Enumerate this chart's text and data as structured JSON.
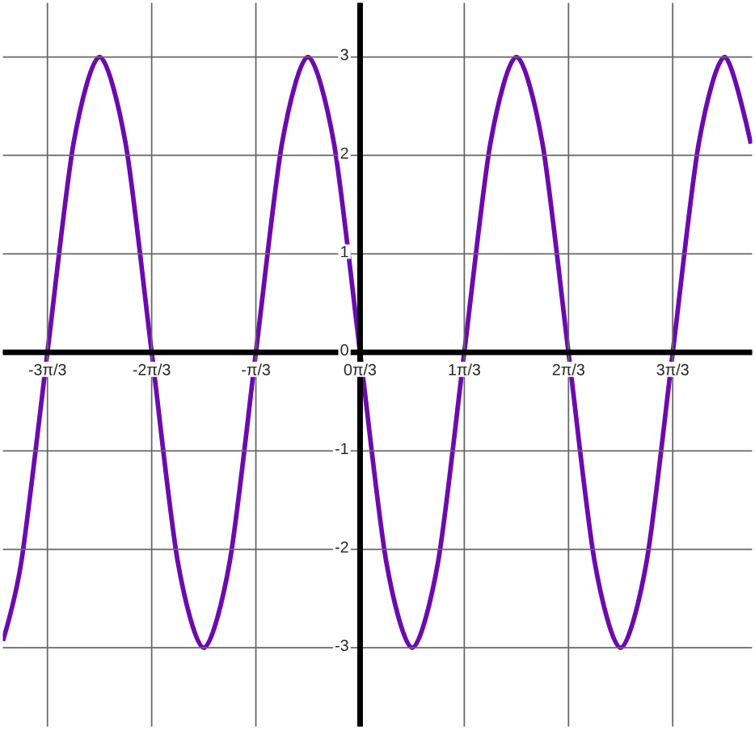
{
  "chart_data": {
    "type": "line",
    "x": [
      -3.59,
      -3.403,
      -3.142,
      -2.88,
      -2.618,
      -2.356,
      -2.094,
      -1.833,
      -1.571,
      -1.309,
      -1.047,
      -0.785,
      -0.524,
      -0.262,
      0,
      0.262,
      0.524,
      0.785,
      1.047,
      1.309,
      1.571,
      1.833,
      2.094,
      2.356,
      2.618,
      2.88,
      3.142,
      3.403,
      3.665,
      3.927
    ],
    "series": [
      {
        "color": "#6c0ab0",
        "values": [
          -2.93,
          -2.12,
          0,
          2.12,
          3,
          2.12,
          0,
          -2.12,
          -3,
          -2.12,
          0,
          2.12,
          3,
          2.12,
          0,
          -2.12,
          -3,
          -2.12,
          0,
          2.12,
          3,
          2.12,
          0,
          -2.12,
          -3,
          -2.12,
          0,
          2.12,
          3,
          2.12
        ]
      }
    ],
    "xlim": [
      -3.59,
      3.94
    ],
    "ylim": [
      -3.8,
      3.55
    ],
    "xticks": [
      {
        "value": -3.1416,
        "label": "-3π/3"
      },
      {
        "value": -2.0944,
        "label": "-2π/3"
      },
      {
        "value": -1.0472,
        "label": "-π/3"
      },
      {
        "value": 0,
        "label": "0π/3"
      },
      {
        "value": 1.0472,
        "label": "1π/3"
      },
      {
        "value": 2.0944,
        "label": "2π/3"
      },
      {
        "value": 3.1416,
        "label": "3π/3"
      }
    ],
    "yticks": [
      -3,
      -2,
      -1,
      0,
      1,
      2,
      3
    ],
    "grid": true,
    "marker": "none",
    "line_style": "solid"
  }
}
